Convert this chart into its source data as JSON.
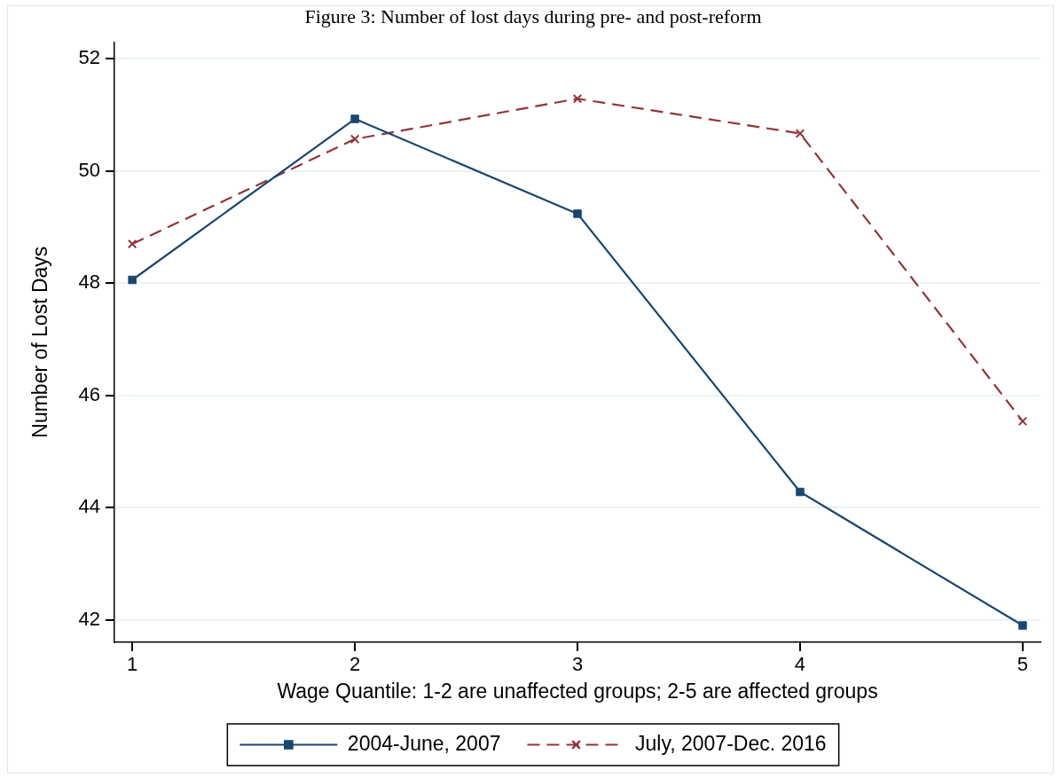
{
  "chart_data": {
    "type": "line",
    "title": "Figure 3: Number of lost days during pre- and post-reform",
    "xlabel": "Wage Quantile: 1-2 are unaffected groups; 2-5 are affected groups",
    "ylabel": "Number of Lost Days",
    "x": [
      1,
      2,
      3,
      4,
      5
    ],
    "xlim": [
      0.92,
      5.08
    ],
    "xticks": [
      1,
      2,
      3,
      4,
      5
    ],
    "ylim": [
      41.6,
      52.3
    ],
    "yticks": [
      42,
      44,
      46,
      48,
      50,
      52
    ],
    "grid": "y",
    "legend": "bottom",
    "series": [
      {
        "name": "2004-June, 2007",
        "color": "#1a476f",
        "values": [
          48.06,
          50.93,
          49.24,
          44.28,
          41.9
        ],
        "marker": "square",
        "line_style": "solid"
      },
      {
        "name": "July, 2007-Dec. 2016",
        "color": "#90353b",
        "values": [
          48.7,
          50.57,
          51.29,
          50.67,
          45.54
        ],
        "marker": "cross",
        "line_style": "dashed"
      }
    ]
  }
}
